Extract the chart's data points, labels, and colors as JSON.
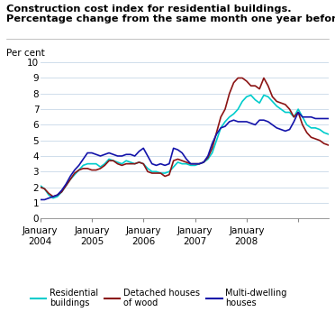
{
  "title_line1": "Construction cost index for residential buildings.",
  "title_line2": "Percentage change from the same month one year before",
  "ylabel": "Per cent",
  "ylim": [
    0,
    10
  ],
  "yticks": [
    0,
    1,
    2,
    3,
    4,
    5,
    6,
    7,
    8,
    9,
    10
  ],
  "colors": {
    "residential": "#00CCCC",
    "detached": "#8B1414",
    "multi": "#1414AA"
  },
  "residential": [
    2.1,
    1.9,
    1.5,
    1.3,
    1.4,
    1.7,
    2.1,
    2.5,
    2.8,
    3.1,
    3.4,
    3.5,
    3.5,
    3.5,
    3.3,
    3.5,
    3.8,
    3.7,
    3.6,
    3.5,
    3.7,
    3.6,
    3.5,
    3.6,
    3.5,
    3.2,
    3.0,
    3.0,
    2.9,
    2.9,
    3.0,
    3.3,
    3.6,
    3.5,
    3.5,
    3.4,
    3.4,
    3.5,
    3.6,
    3.8,
    4.2,
    5.0,
    5.8,
    6.2,
    6.5,
    6.7,
    7.0,
    7.5,
    7.8,
    7.9,
    7.6,
    7.4,
    7.9,
    7.8,
    7.5,
    7.2,
    7.0,
    6.8,
    6.8,
    6.5,
    7.0,
    6.5,
    6.0,
    5.8,
    5.8,
    5.7,
    5.5,
    5.4
  ],
  "detached": [
    2.0,
    1.9,
    1.6,
    1.4,
    1.5,
    1.7,
    2.1,
    2.5,
    2.9,
    3.1,
    3.2,
    3.2,
    3.1,
    3.1,
    3.2,
    3.4,
    3.7,
    3.7,
    3.5,
    3.4,
    3.5,
    3.5,
    3.5,
    3.6,
    3.5,
    3.0,
    2.9,
    2.9,
    2.9,
    2.7,
    2.8,
    3.7,
    3.8,
    3.7,
    3.6,
    3.5,
    3.5,
    3.5,
    3.6,
    3.9,
    4.5,
    5.5,
    6.5,
    7.0,
    8.0,
    8.7,
    9.0,
    9.0,
    8.8,
    8.5,
    8.5,
    8.3,
    9.0,
    8.5,
    7.8,
    7.5,
    7.4,
    7.3,
    7.0,
    6.5,
    6.8,
    6.0,
    5.5,
    5.2,
    5.1,
    5.0,
    4.8,
    4.7
  ],
  "multi": [
    1.2,
    1.2,
    1.3,
    1.4,
    1.5,
    1.8,
    2.2,
    2.7,
    3.1,
    3.4,
    3.8,
    4.2,
    4.2,
    4.1,
    4.0,
    4.1,
    4.2,
    4.1,
    4.0,
    4.0,
    4.1,
    4.1,
    4.0,
    4.3,
    4.5,
    4.0,
    3.5,
    3.4,
    3.5,
    3.4,
    3.5,
    4.5,
    4.4,
    4.2,
    3.8,
    3.5,
    3.5,
    3.5,
    3.6,
    4.0,
    4.8,
    5.4,
    5.8,
    5.9,
    6.2,
    6.3,
    6.2,
    6.2,
    6.2,
    6.1,
    6.0,
    6.3,
    6.3,
    6.2,
    6.0,
    5.8,
    5.7,
    5.6,
    5.7,
    6.2,
    6.8,
    6.5,
    6.5,
    6.5,
    6.4,
    6.4,
    6.4,
    6.4
  ],
  "n_months": 68
}
